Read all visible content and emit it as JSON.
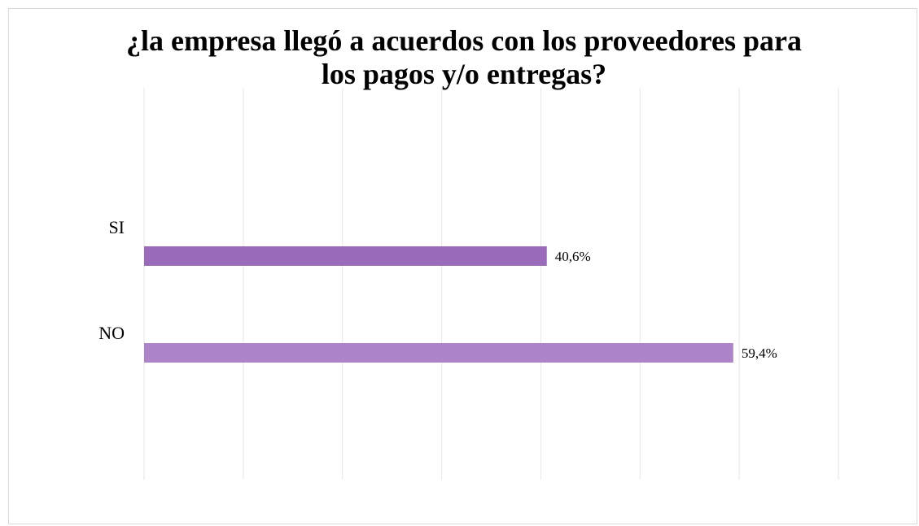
{
  "chart_data": {
    "type": "bar",
    "orientation": "horizontal",
    "title_lines": [
      "¿la empresa llegó a acuerdos con los proveedores para",
      "los pagos y/o entregas?"
    ],
    "categories": [
      "SI",
      "NO"
    ],
    "values": [
      40.6,
      59.4
    ],
    "value_labels": [
      "40,6%",
      "59,4%"
    ],
    "xlim": [
      0,
      70
    ],
    "gridlines": true,
    "colors": {
      "SI": "#9a6bbb",
      "NO": "#ac84c7"
    }
  }
}
